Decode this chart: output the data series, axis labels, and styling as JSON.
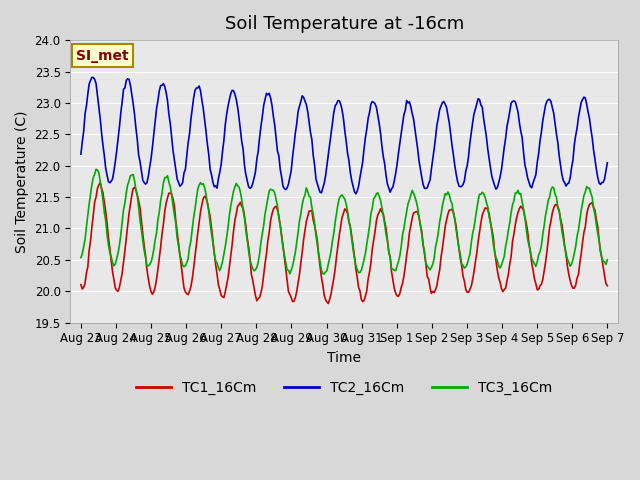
{
  "title": "Soil Temperature at -16cm",
  "xlabel": "Time",
  "ylabel": "Soil Temperature (C)",
  "ylim": [
    19.5,
    24.0
  ],
  "yticks": [
    19.5,
    20.0,
    20.5,
    21.0,
    21.5,
    22.0,
    22.5,
    23.0,
    23.5,
    24.0
  ],
  "xtick_labels": [
    "Aug 23",
    "Aug 24",
    "Aug 25",
    "Aug 26",
    "Aug 27",
    "Aug 28",
    "Aug 29",
    "Aug 30",
    "Aug 31",
    "Sep 1",
    "Sep 2",
    "Sep 3",
    "Sep 4",
    "Sep 5",
    "Sep 6",
    "Sep 7"
  ],
  "line_colors": [
    "#cc0000",
    "#0000cc",
    "#00aa00"
  ],
  "legend_labels": [
    "TC1_16Cm",
    "TC2_16Cm",
    "TC3_16Cm"
  ],
  "annotation_text": "SI_met",
  "annotation_bg": "#ffffcc",
  "annotation_border": "#aa8800",
  "annotation_text_color": "#880000",
  "plot_bg_color": "#e8e8e8",
  "fig_bg_color": "#d8d8d8",
  "grid_color": "#ffffff",
  "title_fontsize": 13,
  "axis_fontsize": 10,
  "tick_fontsize": 8.5,
  "legend_fontsize": 10,
  "n_days": 16
}
